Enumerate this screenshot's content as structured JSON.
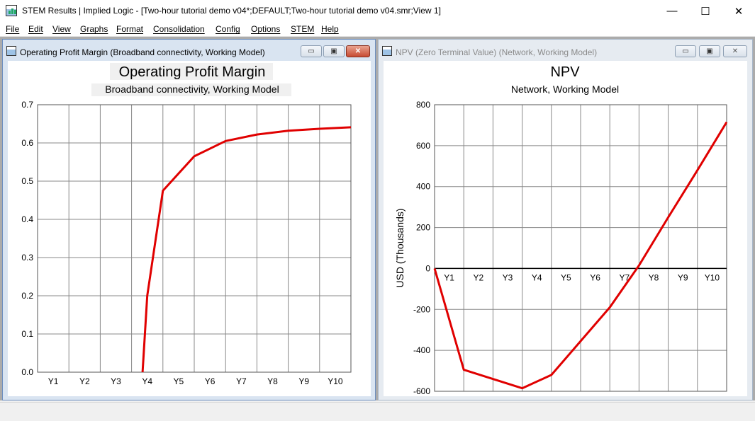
{
  "window": {
    "title": "STEM Results | Implied Logic - [Two-hour tutorial demo v04*;DEFAULT;Two-hour tutorial demo v04.smr;View 1]",
    "minimize_glyph": "—",
    "maximize_glyph": "☐",
    "close_glyph": "✕"
  },
  "menu": [
    "File",
    "Edit",
    "View",
    "Graphs",
    "Format",
    "Consolidation",
    "Config",
    "Options",
    "STEM",
    "Help"
  ],
  "child_windows": [
    {
      "title": "Operating Profit Margin (Broadband connectivity, Working Model)",
      "active": true
    },
    {
      "title": "NPV (Zero Terminal Value) (Network, Working Model)",
      "active": false
    }
  ],
  "child_buttons": {
    "minimize": "▭",
    "restore": "▣",
    "close": "✕"
  },
  "chart_data": [
    {
      "type": "line",
      "title": "Operating Profit Margin",
      "subtitle": "Broadband connectivity, Working Model",
      "xlabel": "",
      "ylabel": "",
      "categories": [
        "Y1",
        "Y2",
        "Y3",
        "Y4",
        "Y5",
        "Y6",
        "Y7",
        "Y8",
        "Y9",
        "Y10"
      ],
      "ylim": [
        0,
        0.7
      ],
      "yticks": [
        "0.0",
        "0.1",
        "0.2",
        "0.3",
        "0.4",
        "0.5",
        "0.6",
        "0.7"
      ],
      "series": [
        {
          "color": "#e00000",
          "points": [
            [
              3.35,
              0.0
            ],
            [
              3.5,
              0.2
            ],
            [
              4.0,
              0.475
            ],
            [
              5.0,
              0.565
            ],
            [
              6.0,
              0.605
            ],
            [
              7.0,
              0.622
            ],
            [
              8.0,
              0.632
            ],
            [
              9.0,
              0.637
            ],
            [
              10.0,
              0.641
            ]
          ]
        }
      ],
      "grid": true,
      "legend": "none"
    },
    {
      "type": "line",
      "title": "NPV",
      "subtitle": "Network, Working Model",
      "xlabel": "",
      "ylabel": "USD  (Thousands)",
      "categories": [
        "Y1",
        "Y2",
        "Y3",
        "Y4",
        "Y5",
        "Y6",
        "Y7",
        "Y8",
        "Y9",
        "Y10"
      ],
      "ylim": [
        -600,
        800
      ],
      "yticks": [
        "-600",
        "-400",
        "-200",
        "0",
        "200",
        "400",
        "600",
        "800"
      ],
      "series": [
        {
          "color": "#e00000",
          "points": [
            [
              0,
              0
            ],
            [
              1,
              -495
            ],
            [
              3,
              -585
            ],
            [
              4,
              -520
            ],
            [
              6,
              -190
            ],
            [
              7,
              15
            ],
            [
              8,
              250
            ],
            [
              9,
              480
            ],
            [
              10,
              715
            ]
          ]
        }
      ],
      "grid": true,
      "legend": "none"
    }
  ]
}
